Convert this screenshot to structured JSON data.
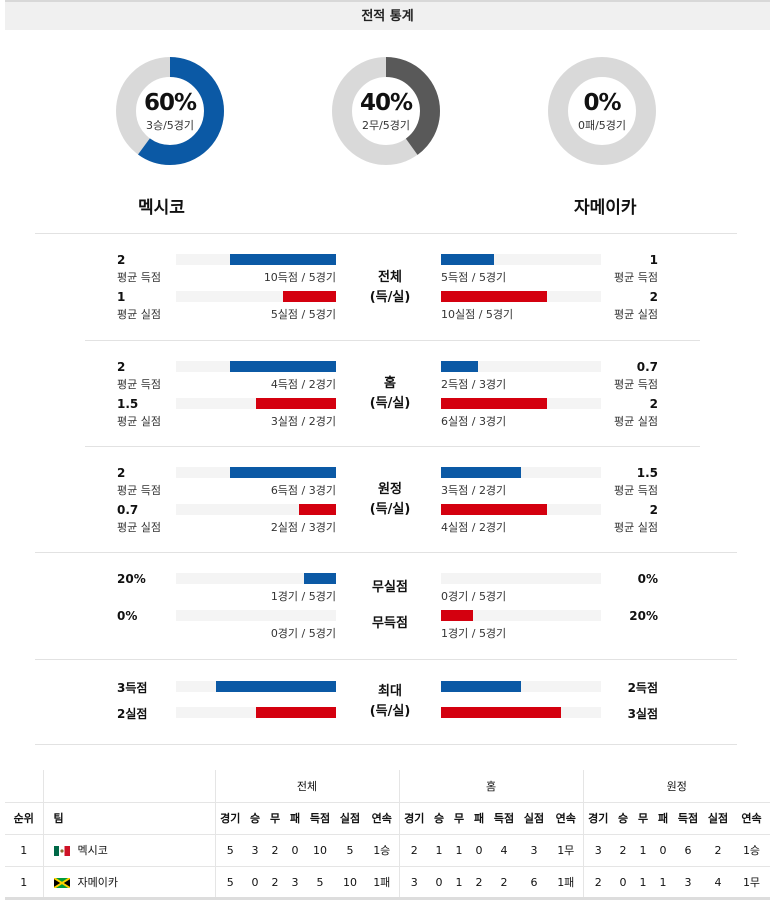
{
  "header": {
    "title": "전적 통계"
  },
  "donuts": [
    {
      "pct": "60%",
      "sub": "3승/5경기",
      "value": 0.6,
      "color": "#0b59a5"
    },
    {
      "pct": "40%",
      "sub": "2무/5경기",
      "value": 0.4,
      "color": "#595959"
    },
    {
      "pct": "0%",
      "sub": "0패/5경기",
      "value": 0.0,
      "color": "#cccccc"
    }
  ],
  "teams": {
    "home": "멕시코",
    "away": "자메이카"
  },
  "colors": {
    "blue": "#0b59a5",
    "red": "#d4000f",
    "track": "#f4f4f4",
    "donut_bg": "#d9d9d9"
  },
  "sections": [
    {
      "title": "전체",
      "subtitle": "(득/실)",
      "rows": [
        {
          "l_val": "2",
          "l_lbl": "평균 득점",
          "l_bar": "10득점 / 5경기",
          "l_frac": 0.66,
          "r_val": "1",
          "r_lbl": "평균 득점",
          "r_bar": "5득점 / 5경기",
          "r_frac": 0.33,
          "color": "blue"
        },
        {
          "l_val": "1",
          "l_lbl": "평균 실점",
          "l_bar": "5실점 / 5경기",
          "l_frac": 0.33,
          "r_val": "2",
          "r_lbl": "평균 실점",
          "r_bar": "10실점 / 5경기",
          "r_frac": 0.66,
          "color": "red"
        }
      ]
    },
    {
      "title": "홈",
      "subtitle": "(득/실)",
      "rows": [
        {
          "l_val": "2",
          "l_lbl": "평균 득점",
          "l_bar": "4득점 / 2경기",
          "l_frac": 0.66,
          "r_val": "0.7",
          "r_lbl": "평균 득점",
          "r_bar": "2득점 / 3경기",
          "r_frac": 0.23,
          "color": "blue"
        },
        {
          "l_val": "1.5",
          "l_lbl": "평균 실점",
          "l_bar": "3실점 / 2경기",
          "l_frac": 0.5,
          "r_val": "2",
          "r_lbl": "평균 실점",
          "r_bar": "6실점 / 3경기",
          "r_frac": 0.66,
          "color": "red"
        }
      ]
    },
    {
      "title": "원정",
      "subtitle": "(득/실)",
      "rows": [
        {
          "l_val": "2",
          "l_lbl": "평균 득점",
          "l_bar": "6득점 / 3경기",
          "l_frac": 0.66,
          "r_val": "1.5",
          "r_lbl": "평균 득점",
          "r_bar": "3득점 / 2경기",
          "r_frac": 0.5,
          "color": "blue"
        },
        {
          "l_val": "0.7",
          "l_lbl": "평균 실점",
          "l_bar": "2실점 / 3경기",
          "l_frac": 0.23,
          "r_val": "2",
          "r_lbl": "평균 실점",
          "r_bar": "4실점 / 2경기",
          "r_frac": 0.66,
          "color": "red"
        }
      ]
    }
  ],
  "clean": {
    "titles": [
      "무실점",
      "무득점"
    ],
    "rows": [
      {
        "l_val": "20%",
        "l_bar": "1경기 / 5경기",
        "l_frac": 0.2,
        "r_val": "0%",
        "r_bar": "0경기 / 5경기",
        "r_frac": 0.0,
        "color": "blue"
      },
      {
        "l_val": "0%",
        "l_bar": "0경기 / 5경기",
        "l_frac": 0.0,
        "r_val": "20%",
        "r_bar": "1경기 / 5경기",
        "r_frac": 0.2,
        "color": "red"
      }
    ]
  },
  "max": {
    "title": "최대",
    "subtitle": "(득/실)",
    "rows": [
      {
        "l_val": "3득점",
        "l_frac": 0.75,
        "r_val": "2득점",
        "r_frac": 0.5,
        "color": "blue"
      },
      {
        "l_val": "2실점",
        "l_frac": 0.5,
        "r_val": "3실점",
        "r_frac": 0.75,
        "color": "red"
      }
    ]
  },
  "table": {
    "groups": [
      "전체",
      "홈",
      "원정"
    ],
    "headers": [
      "순위",
      "팀",
      "경기",
      "승",
      "무",
      "패",
      "득점",
      "실점",
      "연속",
      "경기",
      "승",
      "무",
      "패",
      "득점",
      "실점",
      "연속",
      "경기",
      "승",
      "무",
      "패",
      "득점",
      "실점",
      "연속"
    ],
    "rows": [
      {
        "rank": "1",
        "team": "멕시코",
        "flag": "mexico-flag-icon",
        "cells": [
          "5",
          "3",
          "2",
          "0",
          "10",
          "5",
          "1승",
          "2",
          "1",
          "1",
          "0",
          "4",
          "3",
          "1무",
          "3",
          "2",
          "1",
          "0",
          "6",
          "2",
          "1승"
        ]
      },
      {
        "rank": "1",
        "team": "자메이카",
        "flag": "jamaica-flag-icon",
        "cells": [
          "5",
          "0",
          "2",
          "3",
          "5",
          "10",
          "1패",
          "3",
          "0",
          "1",
          "2",
          "2",
          "6",
          "1패",
          "2",
          "0",
          "1",
          "1",
          "3",
          "4",
          "1무"
        ]
      }
    ]
  }
}
